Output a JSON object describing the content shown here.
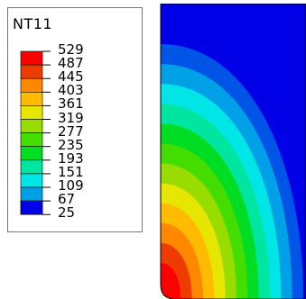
{
  "legend": {
    "title": "NT11",
    "values": [
      "529",
      "487",
      "445",
      "403",
      "361",
      "319",
      "277",
      "235",
      "193",
      "151",
      "109",
      "67",
      "25"
    ],
    "colors": [
      "#ff0000",
      "#ee3c00",
      "#ff8800",
      "#ffbb00",
      "#e6e600",
      "#99dd00",
      "#44dd00",
      "#00dd22",
      "#00e6a0",
      "#00e6e6",
      "#00a0e6",
      "#0055e6",
      "#0000e6"
    ]
  },
  "contour": {
    "palette_low_to_high": [
      "#0000e6",
      "#0055e6",
      "#00a0e6",
      "#00e6e6",
      "#00e6a0",
      "#00dd22",
      "#44dd00",
      "#99dd00",
      "#e6e600",
      "#ffbb00",
      "#ff8800",
      "#ee3c00",
      "#ff0000"
    ]
  }
}
